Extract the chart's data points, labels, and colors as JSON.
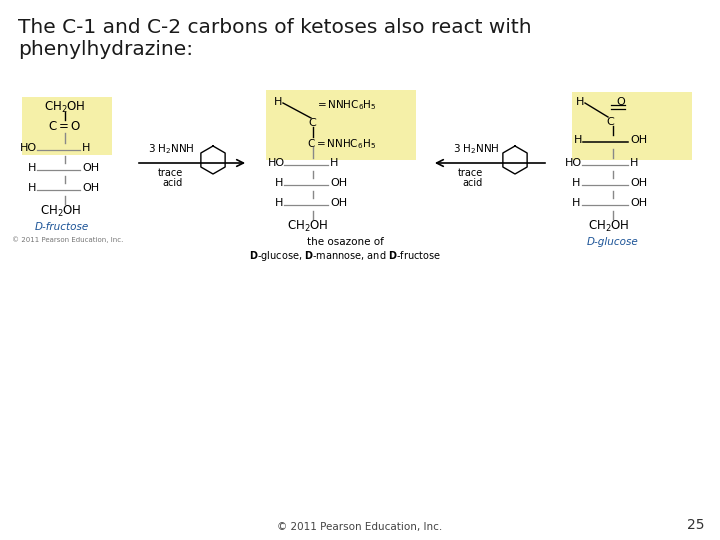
{
  "bg_color": "#ffffff",
  "title_line1": "The C-1 and C-2 carbons of ketoses also react with",
  "title_line2": "phenylhydrazine:",
  "title_color": "#1a1a1a",
  "title_fontsize": 14.5,
  "highlight_color": "#f5f0a8",
  "structure_color": "#000000",
  "label_blue": "#1a5296",
  "copyright_text": "© 2011 Pearson Education, Inc.",
  "page_number": "25",
  "fs": 8.0,
  "fs_sm": 6.5
}
